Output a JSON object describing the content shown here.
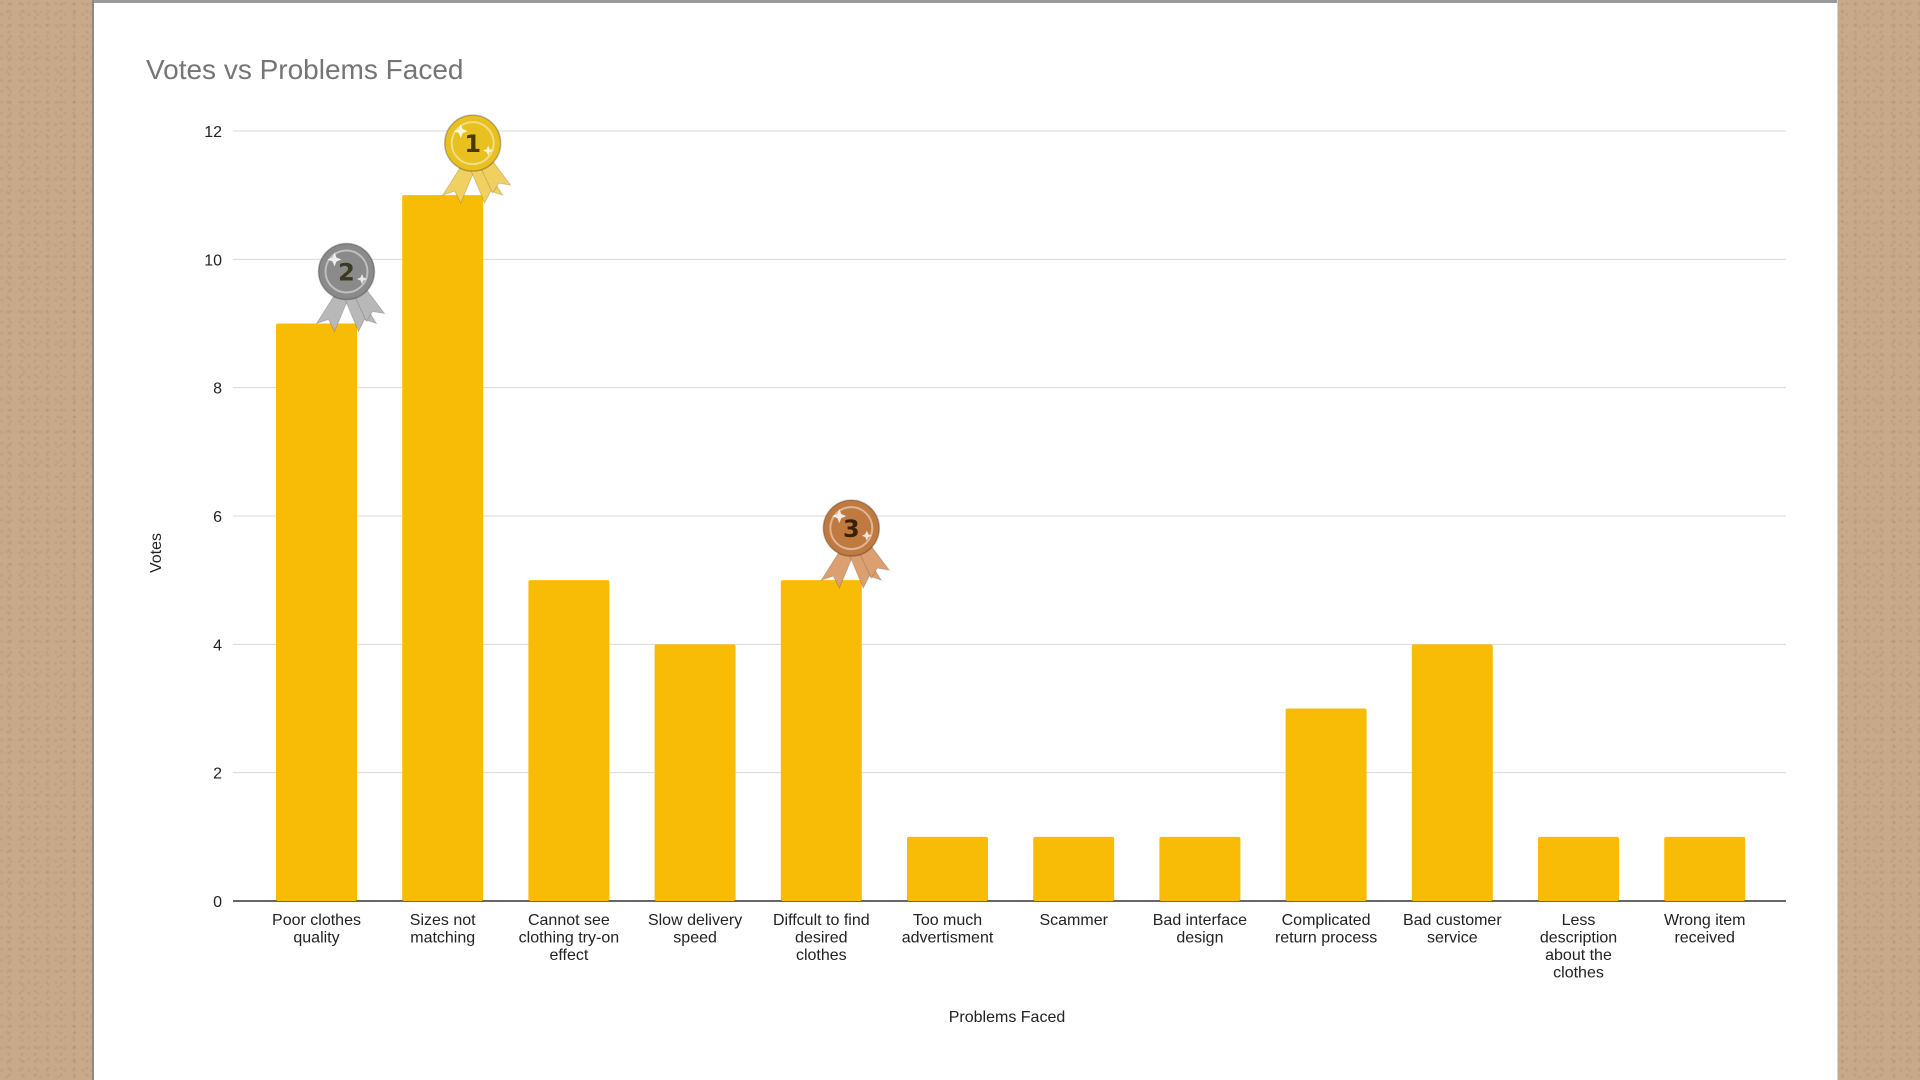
{
  "chart_data": {
    "type": "bar",
    "title": "Votes vs Problems Faced",
    "xlabel": "Problems Faced",
    "ylabel": "Votes",
    "ylim": [
      0,
      12
    ],
    "yticks": [
      0,
      2,
      4,
      6,
      8,
      10,
      12
    ],
    "grid": true,
    "bar_color": "#f9bc06",
    "categories": [
      [
        "Poor clothes",
        "quality"
      ],
      [
        "Sizes not",
        "matching"
      ],
      [
        "Cannot see",
        "clothing try-on",
        "effect"
      ],
      [
        "Slow delivery",
        "speed"
      ],
      [
        "Diffcult to find",
        "desired",
        "clothes"
      ],
      [
        "Too much",
        "advertisment"
      ],
      [
        "Scammer"
      ],
      [
        "Bad interface",
        "design"
      ],
      [
        "Complicated",
        "return process"
      ],
      [
        "Bad customer",
        "service"
      ],
      [
        "Less",
        "description",
        "about the",
        "clothes"
      ],
      [
        "Wrong item",
        "received"
      ]
    ],
    "values": [
      9,
      11,
      5,
      4,
      5,
      1,
      1,
      1,
      3,
      4,
      1,
      1
    ],
    "medals": [
      {
        "rank": "1",
        "category_index": 1,
        "color": "#e8c020",
        "ribbon": "#f0d060",
        "text_color": "#4a3a00"
      },
      {
        "rank": "2",
        "category_index": 0,
        "color": "#8a8a8a",
        "ribbon": "#b8b8b8",
        "text_color": "#3a3a20"
      },
      {
        "rank": "3",
        "category_index": 4,
        "color": "#c07a40",
        "ribbon": "#dca070",
        "text_color": "#3a2200"
      }
    ]
  }
}
